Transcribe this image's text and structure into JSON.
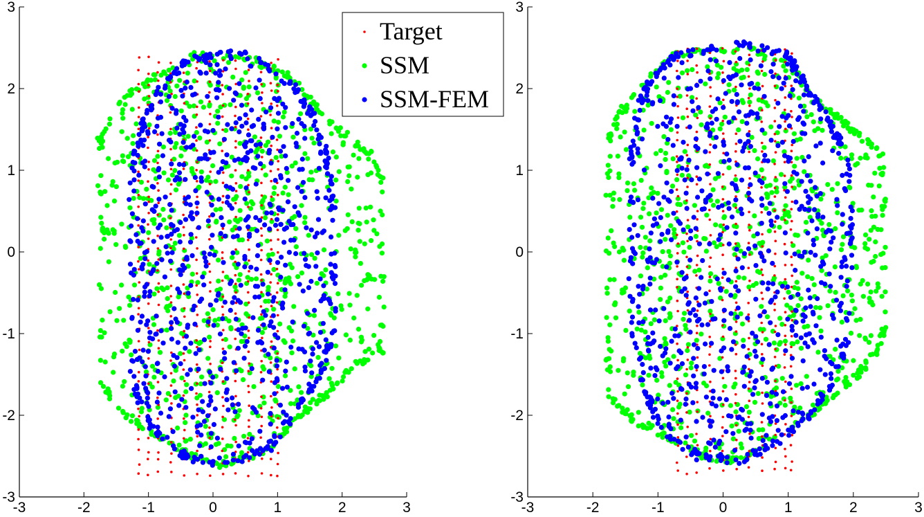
{
  "chart_data": [
    {
      "type": "scatter",
      "panel": "left",
      "xlim": [
        -3,
        3
      ],
      "ylim": [
        -3,
        3
      ],
      "xticks": [
        -3,
        -2,
        -1,
        0,
        1,
        2,
        3
      ],
      "yticks": [
        -3,
        -2,
        -1,
        0,
        1,
        2,
        3
      ],
      "xtick_labels": [
        "-3",
        "-2",
        "-1",
        "0",
        "1",
        "2",
        "3"
      ],
      "ytick_labels": [
        "-3",
        "-2",
        "-1",
        "0",
        "1",
        "2",
        "3"
      ],
      "grid": false,
      "legend": {
        "placement": "top-right",
        "entries": [
          {
            "name": "Target",
            "color": "#ff0000"
          },
          {
            "name": "SSM",
            "color": "#00ff00"
          },
          {
            "name": "SSM-FEM",
            "color": "#0000ff"
          }
        ]
      },
      "series": [
        {
          "name": "Target",
          "color": "#ff0000",
          "marker": "small-dot",
          "extent": {
            "x_min": -1.2,
            "x_max": 1.05,
            "y_min": -2.75,
            "y_max": 2.45
          },
          "column_xs": [
            -1.15,
            -1.0,
            -0.85,
            -0.65,
            -0.45,
            -0.25,
            -0.05,
            0.15,
            0.35,
            0.55,
            0.75,
            0.9,
            1.0
          ]
        },
        {
          "name": "SSM",
          "color": "#00ff00",
          "marker": "dot",
          "outline": [
            [
              -0.3,
              2.45
            ],
            [
              0.6,
              2.4
            ],
            [
              1.2,
              2.2
            ],
            [
              1.6,
              1.85
            ],
            [
              2.05,
              1.5
            ],
            [
              2.45,
              1.25
            ],
            [
              2.65,
              0.9
            ],
            [
              2.65,
              -1.25
            ],
            [
              2.2,
              -1.45
            ],
            [
              1.85,
              -1.75
            ],
            [
              1.3,
              -2.1
            ],
            [
              0.9,
              -2.45
            ],
            [
              0.2,
              -2.65
            ],
            [
              -0.5,
              -2.5
            ],
            [
              -1.1,
              -2.2
            ],
            [
              -1.5,
              -1.95
            ],
            [
              -1.75,
              -1.65
            ],
            [
              -1.8,
              1.4
            ],
            [
              -1.45,
              1.9
            ],
            [
              -0.9,
              2.2
            ]
          ]
        },
        {
          "name": "SSM-FEM",
          "color": "#0000ff",
          "marker": "dot",
          "outline": [
            [
              -0.4,
              2.4
            ],
            [
              0.45,
              2.5
            ],
            [
              1.2,
              2.15
            ],
            [
              1.55,
              1.75
            ],
            [
              1.8,
              1.25
            ],
            [
              1.9,
              0.5
            ],
            [
              1.9,
              -1.0
            ],
            [
              1.7,
              -1.55
            ],
            [
              1.25,
              -2.05
            ],
            [
              0.9,
              -2.45
            ],
            [
              0.2,
              -2.65
            ],
            [
              -0.45,
              -2.55
            ],
            [
              -1.0,
              -2.2
            ],
            [
              -1.3,
              -1.6
            ],
            [
              -1.3,
              1.05
            ],
            [
              -1.1,
              1.65
            ],
            [
              -0.8,
              2.1
            ]
          ]
        }
      ]
    },
    {
      "type": "scatter",
      "panel": "right",
      "xlim": [
        -3,
        3
      ],
      "ylim": [
        -3,
        3
      ],
      "xticks": [
        -3,
        -2,
        -1,
        0,
        1,
        2,
        3
      ],
      "yticks": [
        -3,
        -2,
        -1,
        0,
        1,
        2,
        3
      ],
      "xtick_labels": [
        "-3",
        "-2",
        "-1",
        "0",
        "1",
        "2",
        "3"
      ],
      "ytick_labels": [
        "-3",
        "-2",
        "-1",
        "0",
        "1",
        "2",
        "3"
      ],
      "grid": false,
      "series": [
        {
          "name": "Target",
          "color": "#ff0000",
          "marker": "small-dot",
          "extent": {
            "x_min": -0.75,
            "x_max": 1.1,
            "y_min": -2.72,
            "y_max": 2.55
          },
          "column_xs": [
            -0.7,
            -0.55,
            -0.4,
            -0.2,
            0.0,
            0.2,
            0.4,
            0.6,
            0.8,
            0.95,
            1.05
          ]
        },
        {
          "name": "SSM",
          "color": "#00ff00",
          "marker": "dot",
          "outline": [
            [
              -0.8,
              2.45
            ],
            [
              0.4,
              2.55
            ],
            [
              1.1,
              2.3
            ],
            [
              1.4,
              1.95
            ],
            [
              1.8,
              1.7
            ],
            [
              2.05,
              1.5
            ],
            [
              2.45,
              1.3
            ],
            [
              2.5,
              0.8
            ],
            [
              2.5,
              -1.0
            ],
            [
              2.35,
              -1.3
            ],
            [
              2.05,
              -1.6
            ],
            [
              1.5,
              -1.95
            ],
            [
              1.0,
              -2.25
            ],
            [
              0.3,
              -2.6
            ],
            [
              -0.3,
              -2.55
            ],
            [
              -0.9,
              -2.3
            ],
            [
              -1.5,
              -2.05
            ],
            [
              -1.8,
              -1.75
            ],
            [
              -1.8,
              1.4
            ],
            [
              -1.6,
              1.8
            ],
            [
              -1.2,
              2.15
            ]
          ]
        },
        {
          "name": "SSM-FEM",
          "color": "#0000ff",
          "marker": "dot",
          "outline": [
            [
              -0.75,
              2.45
            ],
            [
              0.3,
              2.6
            ],
            [
              1.05,
              2.45
            ],
            [
              1.35,
              2.0
            ],
            [
              1.7,
              1.6
            ],
            [
              1.95,
              1.15
            ],
            [
              2.0,
              0.3
            ],
            [
              1.95,
              -1.1
            ],
            [
              1.7,
              -1.65
            ],
            [
              1.35,
              -2.05
            ],
            [
              0.9,
              -2.35
            ],
            [
              0.3,
              -2.6
            ],
            [
              -0.4,
              -2.55
            ],
            [
              -1.0,
              -2.25
            ],
            [
              -1.2,
              -1.8
            ],
            [
              -1.45,
              -1.0
            ],
            [
              -1.45,
              1.1
            ],
            [
              -1.35,
              1.8
            ],
            [
              -1.1,
              2.2
            ]
          ]
        }
      ]
    }
  ]
}
